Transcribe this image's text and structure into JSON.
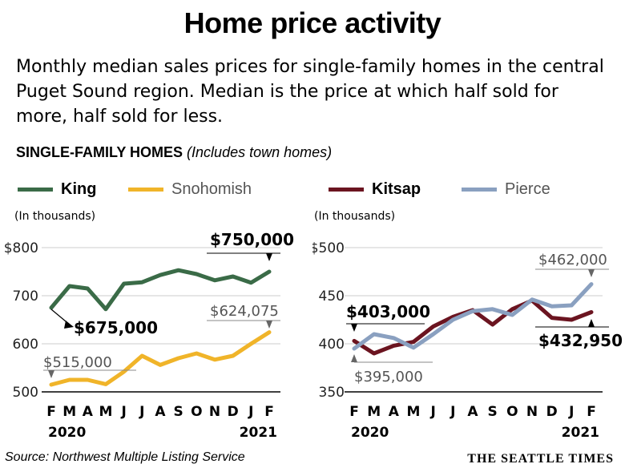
{
  "header": {
    "title": "Home price activity",
    "subtitle": "Monthly median sales prices for single-family homes in the central Puget Sound region. Median is the price at which half sold for more, half sold for less.",
    "section_bold": "SINGLE-FAMILY HOMES",
    "section_italic": "(Includes town homes)"
  },
  "footer": {
    "source": "Source: Northwest Multiple Listing Service",
    "brand": "THE SEATTLE TIMES"
  },
  "colors": {
    "King": "#3a6b47",
    "Snohomish": "#f0b429",
    "Kitsap": "#6b1420",
    "Pierce": "#8aa0c0",
    "grid": "#cccccc"
  },
  "chart_data": [
    {
      "type": "line",
      "units": "(In thousands)",
      "x": [
        "F",
        "M",
        "A",
        "M",
        "J",
        "J",
        "A",
        "S",
        "O",
        "N",
        "D",
        "J",
        "F"
      ],
      "year_labels": [
        "2020",
        "2021"
      ],
      "ylim": [
        500,
        800
      ],
      "yticks": [
        "$800",
        "700",
        "600",
        "500"
      ],
      "series": [
        {
          "name": "King",
          "values": [
            675,
            720,
            715,
            672,
            725,
            728,
            743,
            753,
            745,
            732,
            740,
            727,
            750
          ]
        },
        {
          "name": "Snohomish",
          "values": [
            515,
            525,
            525,
            516,
            542,
            575,
            556,
            570,
            580,
            567,
            575,
            600,
            624
          ]
        }
      ],
      "annotations": [
        {
          "text": "$750,000",
          "series": "King",
          "index": 12,
          "bold": true
        },
        {
          "text": "$675,000",
          "series": "King",
          "index": 0,
          "bold": true
        },
        {
          "text": "$624,075",
          "series": "Snohomish",
          "index": 12,
          "bold": false
        },
        {
          "text": "$515,000",
          "series": "Snohomish",
          "index": 0,
          "bold": false
        }
      ]
    },
    {
      "type": "line",
      "units": "(In thousands)",
      "x": [
        "F",
        "M",
        "A",
        "M",
        "J",
        "J",
        "A",
        "S",
        "O",
        "N",
        "D",
        "J",
        "F"
      ],
      "year_labels": [
        "2020",
        "2021"
      ],
      "ylim": [
        350,
        500
      ],
      "yticks": [
        "$500",
        "450",
        "400",
        "350"
      ],
      "series": [
        {
          "name": "Kitsap",
          "values": [
            403,
            390,
            398,
            402,
            418,
            428,
            435,
            420,
            436,
            445,
            427,
            425,
            432.95
          ]
        },
        {
          "name": "Pierce",
          "values": [
            395,
            410,
            406,
            396,
            410,
            425,
            434,
            436,
            430,
            446,
            439,
            440,
            462
          ]
        }
      ],
      "annotations": [
        {
          "text": "$462,000",
          "series": "Pierce",
          "index": 12,
          "bold": false
        },
        {
          "text": "$403,000",
          "series": "Kitsap",
          "index": 0,
          "bold": true
        },
        {
          "text": "$395,000",
          "series": "Pierce",
          "index": 0,
          "bold": false
        },
        {
          "text": "$432,950",
          "series": "Kitsap",
          "index": 12,
          "bold": true
        }
      ]
    }
  ]
}
